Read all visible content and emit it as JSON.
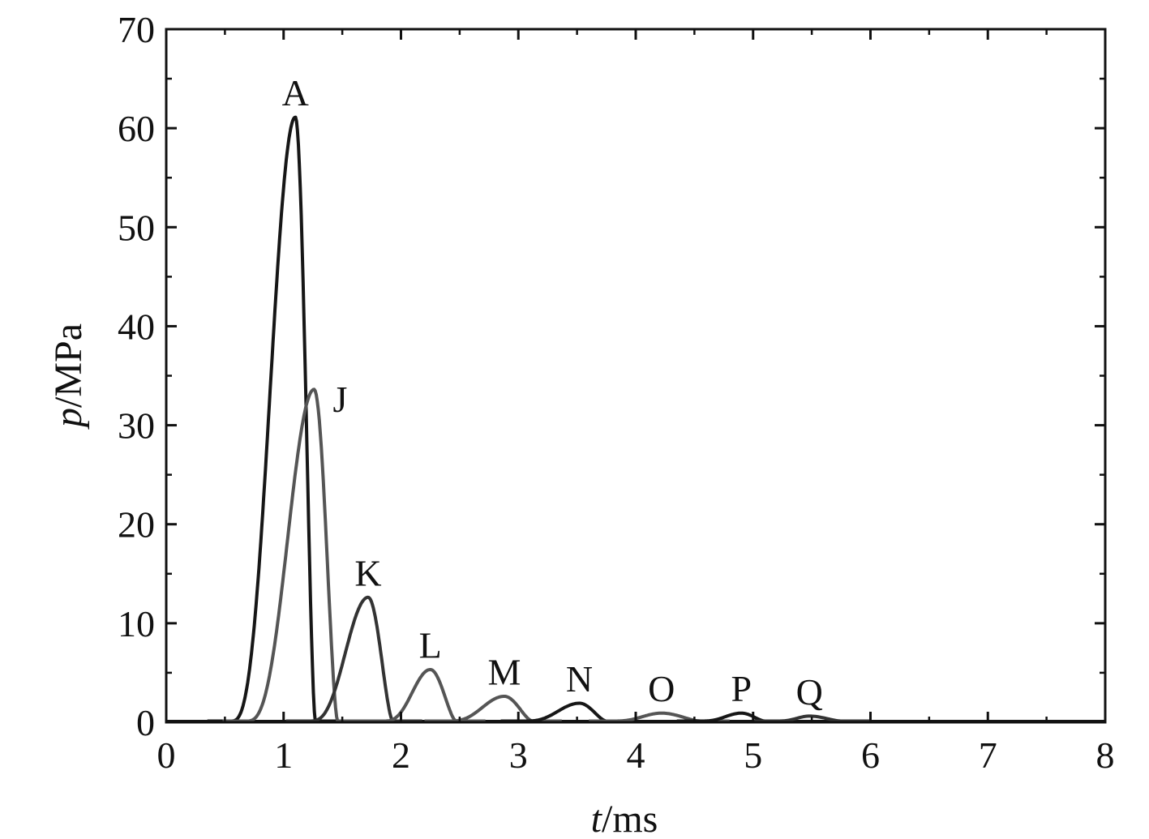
{
  "chart_data": {
    "type": "line",
    "xlabel": {
      "var": "t",
      "unit": "/ms"
    },
    "ylabel": {
      "var": "p",
      "unit": "/MPa"
    },
    "xlim": [
      0,
      8
    ],
    "ylim": [
      0,
      70
    ],
    "xticks": [
      "0",
      "1",
      "2",
      "3",
      "4",
      "5",
      "6",
      "7",
      "8"
    ],
    "yticks": [
      "0",
      "10",
      "20",
      "30",
      "40",
      "50",
      "60",
      "70"
    ],
    "grid": false,
    "legend": "none",
    "colors": {
      "dark": "#161616",
      "mid": "#555555",
      "charcoal": "#333333"
    },
    "series": [
      {
        "label": "A",
        "peak_t": 1.1,
        "peak_p": 61.0,
        "start_t": 0.55,
        "end_t": 1.27,
        "color_key": "dark"
      },
      {
        "label": "J",
        "peak_t": 1.26,
        "peak_p": 33.5,
        "start_t": 0.68,
        "end_t": 1.46,
        "color_key": "mid"
      },
      {
        "label": "K",
        "peak_t": 1.72,
        "peak_p": 12.5,
        "start_t": 1.22,
        "end_t": 1.93,
        "color_key": "charcoal"
      },
      {
        "label": "L",
        "peak_t": 2.25,
        "peak_p": 5.2,
        "start_t": 1.85,
        "end_t": 2.47,
        "color_key": "mid"
      },
      {
        "label": "M",
        "peak_t": 2.88,
        "peak_p": 2.5,
        "start_t": 2.4,
        "end_t": 3.12,
        "color_key": "mid"
      },
      {
        "label": "N",
        "peak_t": 3.52,
        "peak_p": 1.8,
        "start_t": 3.05,
        "end_t": 3.75,
        "color_key": "dark"
      },
      {
        "label": "O",
        "peak_t": 4.22,
        "peak_p": 0.8,
        "start_t": 3.8,
        "end_t": 4.55,
        "color_key": "mid"
      },
      {
        "label": "P",
        "peak_t": 4.9,
        "peak_p": 0.8,
        "start_t": 4.55,
        "end_t": 5.1,
        "color_key": "dark"
      },
      {
        "label": "Q",
        "peak_t": 5.48,
        "peak_p": 0.5,
        "start_t": 5.2,
        "end_t": 5.75,
        "color_key": "charcoal"
      }
    ]
  }
}
